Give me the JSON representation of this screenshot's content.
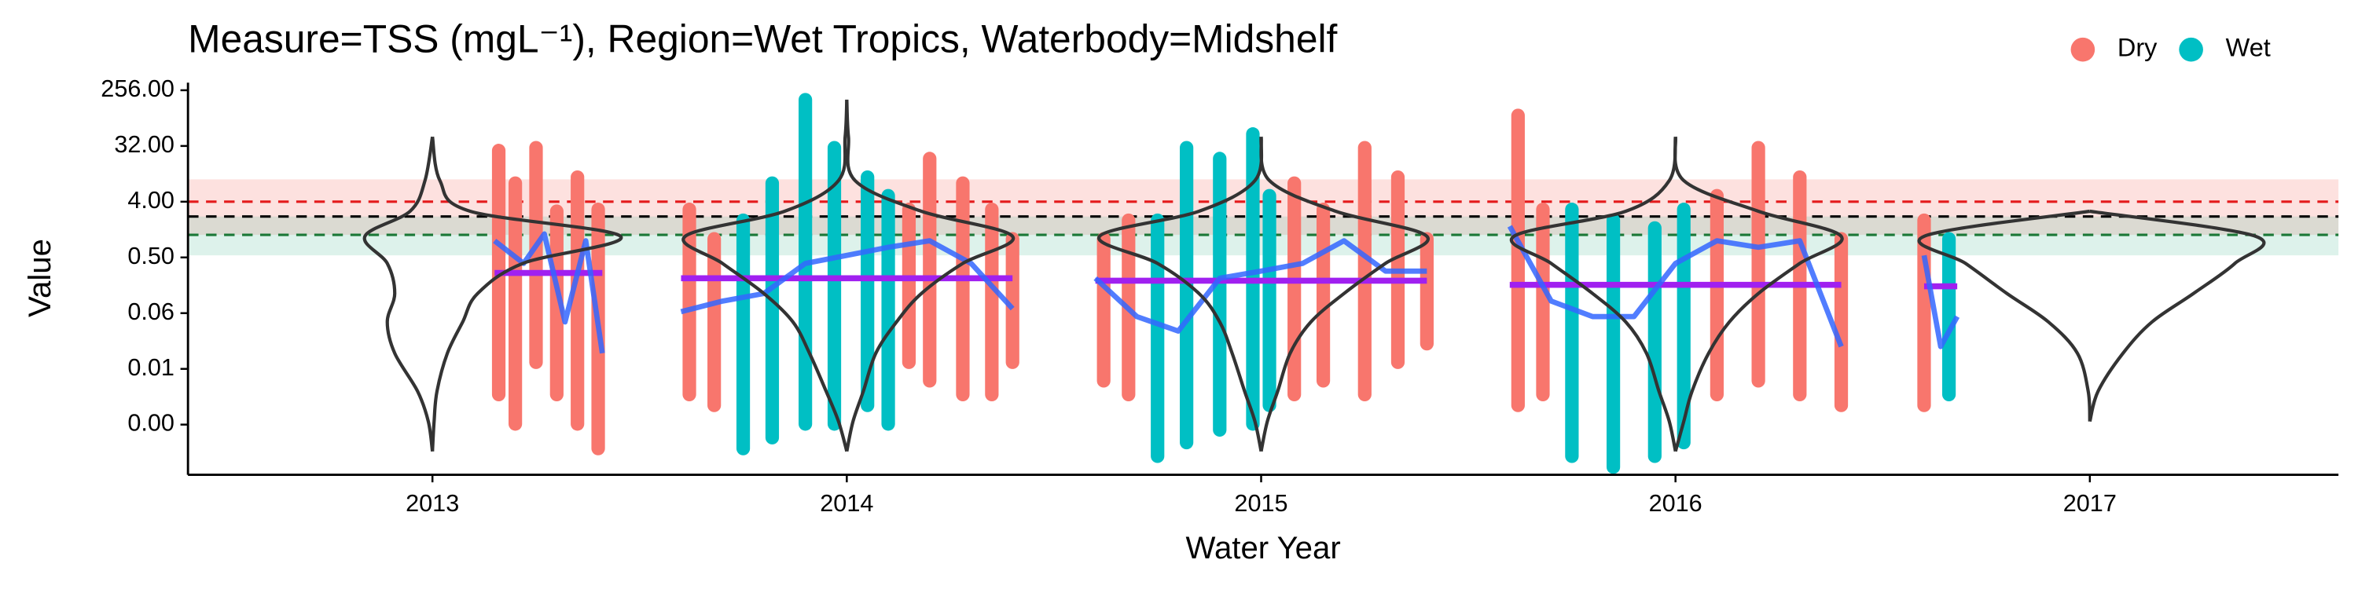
{
  "chart_data": {
    "type": "violin-scatter",
    "title": "Measure=TSS (mgL⁻¹), Region=Wet Tropics, Waterbody=Midshelf",
    "x_label": "Water Year",
    "y_label": "Value",
    "log_y": true,
    "legend_position": "top-right",
    "xlim": [
      2012.41,
      2017.6
    ],
    "ylim": [
      0.00015,
      340
    ],
    "xticks": [
      2013,
      2014,
      2015,
      2016,
      2017
    ],
    "yticks": [
      {
        "value": 256,
        "label": "256.00"
      },
      {
        "value": 32,
        "label": "32.00"
      },
      {
        "value": 4,
        "label": "4.00"
      },
      {
        "value": 0.5,
        "label": "0.50"
      },
      {
        "value": 0.0625,
        "label": "0.06"
      },
      {
        "value": 0.0078125,
        "label": "0.01"
      },
      {
        "value": 0.0009765625,
        "label": "0.00"
      }
    ],
    "bands": [
      {
        "range": [
          1.16,
          9.2
        ],
        "color": "#F8766D"
      },
      {
        "range": [
          0.54,
          2.3
        ],
        "color": "#66C2A5"
      }
    ],
    "reference_lines": [
      {
        "value": 4,
        "color": "#E41A1C"
      },
      {
        "value": 2.3,
        "color": "#000000"
      },
      {
        "value": 1.16,
        "color": "#1B7837"
      }
    ],
    "series": [
      {
        "name": "Dry",
        "color": "#F8766D",
        "x": [
          2013.16,
          2013.2,
          2013.25,
          2013.3,
          2013.35,
          2013.4,
          2013.62,
          2013.68,
          2014.15,
          2014.2,
          2014.28,
          2014.35,
          2014.4,
          2014.62,
          2014.68,
          2015.08,
          2015.15,
          2015.25,
          2015.33,
          2015.4,
          2015.62,
          2015.68,
          2016.1,
          2016.2,
          2016.3,
          2016.4,
          2016.6
        ],
        "low": [
          0.003,
          0.001,
          0.01,
          0.003,
          0.001,
          0.0004,
          0.003,
          0.002,
          0.01,
          0.005,
          0.003,
          0.003,
          0.01,
          0.005,
          0.003,
          0.003,
          0.005,
          0.003,
          0.01,
          0.02,
          0.002,
          0.003,
          0.003,
          0.005,
          0.003,
          0.002,
          0.002
        ],
        "high": [
          27,
          8,
          30,
          2.8,
          10,
          3,
          3,
          1,
          3,
          20,
          8,
          3,
          1,
          1,
          2,
          8,
          3,
          30,
          10,
          1,
          100,
          3,
          5,
          30,
          10,
          1,
          2
        ]
      },
      {
        "name": "Wet",
        "color": "#00BFC4",
        "x": [
          2013.75,
          2013.82,
          2013.9,
          2013.97,
          2014.05,
          2014.1,
          2014.75,
          2014.82,
          2014.9,
          2014.98,
          2015.02,
          2015.75,
          2015.85,
          2015.95,
          2016.02,
          2016.66
        ],
        "low": [
          0.0004,
          0.0006,
          0.001,
          0.001,
          0.002,
          0.001,
          0.0003,
          0.0005,
          0.0008,
          0.001,
          0.002,
          0.0003,
          0.0002,
          0.0003,
          0.0005,
          0.003
        ],
        "high": [
          2,
          8,
          180,
          30,
          10,
          5,
          2,
          30,
          20,
          50,
          5,
          3,
          2,
          1.5,
          3,
          1
        ]
      }
    ],
    "means": {
      "color": "#A020F0",
      "x_start": [
        2013.15,
        2013.6,
        2014.6,
        2015.6,
        2016.6
      ],
      "x_end": [
        2013.41,
        2014.4,
        2015.4,
        2016.4,
        2016.68
      ],
      "values": [
        0.28,
        0.23,
        0.21,
        0.18,
        0.17
      ]
    },
    "smoothers": {
      "color": "#3366FF",
      "lines": [
        {
          "x": [
            2013.15,
            2013.22,
            2013.27,
            2013.32,
            2013.37,
            2013.41
          ],
          "values": [
            0.93,
            0.4,
            1.2,
            0.045,
            0.93,
            0.014
          ]
        },
        {
          "x": [
            2013.6,
            2013.7,
            2013.8,
            2013.9,
            2014.0,
            2014.1,
            2014.2,
            2014.3,
            2014.4
          ],
          "values": [
            0.066,
            0.098,
            0.13,
            0.4,
            0.54,
            0.73,
            0.93,
            0.4,
            0.074
          ]
        },
        {
          "x": [
            2014.6,
            2014.7,
            2014.8,
            2014.9,
            2015.0,
            2015.1,
            2015.2,
            2015.3,
            2015.4
          ],
          "values": [
            0.23,
            0.055,
            0.032,
            0.23,
            0.3,
            0.4,
            0.93,
            0.3,
            0.3
          ]
        },
        {
          "x": [
            2015.6,
            2015.7,
            2015.8,
            2015.9,
            2016.0,
            2016.1,
            2016.2,
            2016.3,
            2016.4
          ],
          "values": [
            1.6,
            0.098,
            0.055,
            0.055,
            0.4,
            0.93,
            0.73,
            0.93,
            0.018
          ]
        },
        {
          "x": [
            2016.6,
            2016.64,
            2016.68
          ],
          "values": [
            0.54,
            0.018,
            0.055
          ]
        }
      ]
    },
    "violins": {
      "color": "#333333",
      "centers": [
        2013,
        2014,
        2015,
        2016,
        2017
      ],
      "levels": [
        180,
        45,
        8.8,
        2.8,
        1.1,
        0.4,
        0.13,
        0.045,
        0.014,
        0.0034,
        0.0011,
        0.00036
      ],
      "left": [
        [
          null,
          0,
          0.018,
          0.054,
          0.163,
          0.109,
          0.091,
          0.109,
          0.091,
          0.036,
          0.01,
          0
        ],
        [
          0,
          0.004,
          0.02,
          0.15,
          0.39,
          0.3,
          0.2,
          0.13,
          0.09,
          0.05,
          0.02,
          0
        ],
        [
          null,
          0,
          0.015,
          0.15,
          0.39,
          0.25,
          0.15,
          0.1,
          0.07,
          0.04,
          0.015,
          0
        ],
        [
          null,
          0,
          0.015,
          0.12,
          0.39,
          0.3,
          0.2,
          0.12,
          0.07,
          0.04,
          0.015,
          0
        ],
        [
          null,
          null,
          null,
          0,
          0.4,
          0.3,
          0.2,
          0.1,
          0.03,
          0.004,
          0,
          null
        ]
      ],
      "right": [
        [
          null,
          0,
          0.018,
          0.091,
          0.454,
          0.218,
          0.109,
          0.073,
          0.036,
          0.011,
          0.004,
          0
        ],
        [
          0,
          0.004,
          0.02,
          0.18,
          0.4,
          0.28,
          0.18,
          0.12,
          0.07,
          0.04,
          0.015,
          0
        ],
        [
          null,
          0,
          0.02,
          0.18,
          0.4,
          0.3,
          0.2,
          0.12,
          0.07,
          0.04,
          0.015,
          0
        ],
        [
          null,
          0,
          0.02,
          0.2,
          0.4,
          0.3,
          0.2,
          0.13,
          0.08,
          0.04,
          0.02,
          0
        ],
        [
          null,
          null,
          null,
          0,
          0.4,
          0.35,
          0.25,
          0.15,
          0.08,
          0.02,
          0,
          null
        ]
      ]
    }
  }
}
